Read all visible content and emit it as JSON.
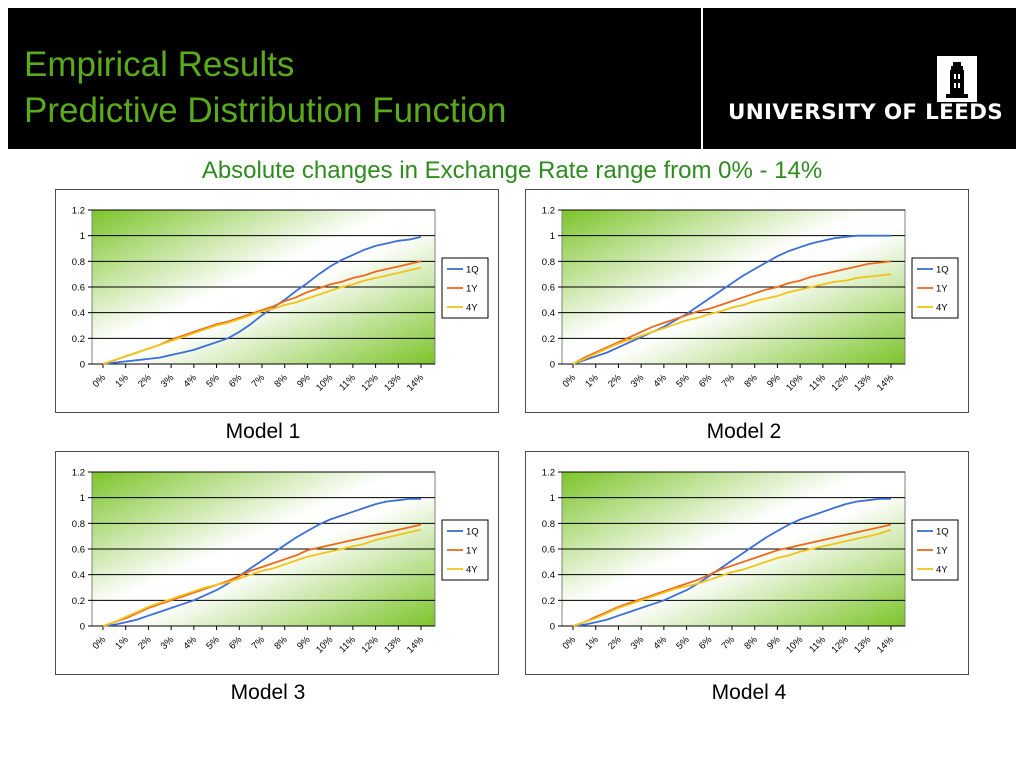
{
  "header": {
    "title_line1": "Empirical Results",
    "title_line2": "Predictive Distribution Function",
    "university": "UNIVERSITY OF LEEDS",
    "logo_icon": "tower-icon"
  },
  "subtitle": "Absolute changes in Exchange Rate range from 0% - 14%",
  "colors": {
    "title": "#5aab1c",
    "subtitle": "#2e8b1e",
    "1Q": "#3a6fd8",
    "1Y": "#ee6a1a",
    "4Y": "#f3c317",
    "plot_green": "#7cc42a"
  },
  "chart_data": [
    {
      "type": "line",
      "caption": "Model 1",
      "categories": [
        "0%",
        "1%",
        "2%",
        "3%",
        "4%",
        "5%",
        "6%",
        "7%",
        "8%",
        "9%",
        "10%",
        "11%",
        "12%",
        "13%",
        "14%"
      ],
      "yticks": [
        "0",
        "0.2",
        "0.4",
        "0.6",
        "0.8",
        "1",
        "1.2"
      ],
      "ylim": [
        0,
        1.2
      ],
      "legend": "right",
      "grid": true,
      "series": [
        {
          "name": "1Q",
          "color": "#3a6fd8",
          "x": [
            0,
            0.5,
            1,
            1.5,
            2,
            2.5,
            3,
            3.5,
            4,
            4.5,
            5,
            5.5,
            6,
            6.5,
            7,
            7.5,
            8,
            8.5,
            9,
            9.5,
            10,
            10.5,
            11,
            11.5,
            12,
            12.5,
            13,
            13.5,
            14
          ],
          "values": [
            0,
            0.01,
            0.02,
            0.03,
            0.04,
            0.05,
            0.07,
            0.09,
            0.11,
            0.14,
            0.17,
            0.2,
            0.25,
            0.31,
            0.38,
            0.44,
            0.5,
            0.57,
            0.63,
            0.7,
            0.76,
            0.81,
            0.85,
            0.89,
            0.92,
            0.94,
            0.96,
            0.97,
            0.99
          ]
        },
        {
          "name": "1Y",
          "color": "#ee6a1a",
          "x": [
            0,
            0.5,
            1,
            1.5,
            2,
            2.5,
            3,
            3.5,
            4,
            4.5,
            5,
            5.5,
            6,
            6.5,
            7,
            7.5,
            8,
            8.5,
            9,
            9.5,
            10,
            10.5,
            11,
            11.5,
            12,
            12.5,
            13,
            13.5,
            14
          ],
          "values": [
            0,
            0.03,
            0.06,
            0.09,
            0.12,
            0.15,
            0.19,
            0.22,
            0.25,
            0.28,
            0.31,
            0.33,
            0.36,
            0.39,
            0.42,
            0.45,
            0.49,
            0.52,
            0.56,
            0.59,
            0.62,
            0.64,
            0.67,
            0.69,
            0.72,
            0.74,
            0.76,
            0.78,
            0.8
          ]
        },
        {
          "name": "4Y",
          "color": "#f3c317",
          "x": [
            0,
            0.5,
            1,
            1.5,
            2,
            2.5,
            3,
            3.5,
            4,
            4.5,
            5,
            5.5,
            6,
            6.5,
            7,
            7.5,
            8,
            8.5,
            9,
            9.5,
            10,
            10.5,
            11,
            11.5,
            12,
            12.5,
            13,
            13.5,
            14
          ],
          "values": [
            0,
            0.03,
            0.06,
            0.09,
            0.12,
            0.15,
            0.18,
            0.21,
            0.24,
            0.27,
            0.3,
            0.32,
            0.35,
            0.38,
            0.41,
            0.43,
            0.46,
            0.48,
            0.51,
            0.54,
            0.57,
            0.6,
            0.62,
            0.65,
            0.67,
            0.69,
            0.71,
            0.73,
            0.75
          ]
        }
      ]
    },
    {
      "type": "line",
      "caption": "Model 2",
      "categories": [
        "0%",
        "1%",
        "2%",
        "3%",
        "4%",
        "5%",
        "6%",
        "7%",
        "8%",
        "9%",
        "10%",
        "11%",
        "12%",
        "13%",
        "14%"
      ],
      "yticks": [
        "0",
        "0.2",
        "0.4",
        "0.6",
        "0.8",
        "1",
        "1.2"
      ],
      "ylim": [
        0,
        1.2
      ],
      "legend": "right",
      "grid": true,
      "series": [
        {
          "name": "1Q",
          "color": "#3a6fd8",
          "x": [
            0,
            0.5,
            1,
            1.5,
            2,
            2.5,
            3,
            3.5,
            4,
            4.5,
            5,
            5.5,
            6,
            6.5,
            7,
            7.5,
            8,
            8.5,
            9,
            9.5,
            10,
            10.5,
            11,
            11.5,
            12,
            12.5,
            13,
            13.5,
            14
          ],
          "values": [
            0,
            0.03,
            0.06,
            0.09,
            0.13,
            0.17,
            0.21,
            0.25,
            0.29,
            0.34,
            0.39,
            0.45,
            0.51,
            0.57,
            0.63,
            0.69,
            0.74,
            0.79,
            0.84,
            0.88,
            0.91,
            0.94,
            0.96,
            0.98,
            0.99,
            1.0,
            1.0,
            1.0,
            1.0
          ]
        },
        {
          "name": "1Y",
          "color": "#ee6a1a",
          "x": [
            0,
            0.5,
            1,
            1.5,
            2,
            2.5,
            3,
            3.5,
            4,
            4.5,
            5,
            5.5,
            6,
            6.5,
            7,
            7.5,
            8,
            8.5,
            9,
            9.5,
            10,
            10.5,
            11,
            11.5,
            12,
            12.5,
            13,
            13.5,
            14
          ],
          "values": [
            0,
            0.05,
            0.09,
            0.13,
            0.17,
            0.21,
            0.25,
            0.29,
            0.32,
            0.35,
            0.38,
            0.41,
            0.43,
            0.46,
            0.49,
            0.52,
            0.55,
            0.58,
            0.6,
            0.63,
            0.65,
            0.68,
            0.7,
            0.72,
            0.74,
            0.76,
            0.78,
            0.79,
            0.8
          ]
        },
        {
          "name": "4Y",
          "color": "#f3c317",
          "x": [
            0,
            0.5,
            1,
            1.5,
            2,
            2.5,
            3,
            3.5,
            4,
            4.5,
            5,
            5.5,
            6,
            6.5,
            7,
            7.5,
            8,
            8.5,
            9,
            9.5,
            10,
            10.5,
            11,
            11.5,
            12,
            12.5,
            13,
            13.5,
            14
          ],
          "values": [
            0,
            0.04,
            0.08,
            0.12,
            0.16,
            0.19,
            0.22,
            0.25,
            0.28,
            0.31,
            0.34,
            0.36,
            0.39,
            0.41,
            0.44,
            0.46,
            0.49,
            0.51,
            0.53,
            0.56,
            0.58,
            0.6,
            0.62,
            0.64,
            0.65,
            0.67,
            0.68,
            0.69,
            0.7
          ]
        }
      ]
    },
    {
      "type": "line",
      "caption": "Model 3",
      "categories": [
        "0%",
        "1%",
        "2%",
        "3%",
        "4%",
        "5%",
        "6%",
        "7%",
        "8%",
        "9%",
        "10%",
        "11%",
        "12%",
        "13%",
        "14%"
      ],
      "yticks": [
        "0",
        "0.2",
        "0.4",
        "0.6",
        "0.8",
        "1",
        "1.2"
      ],
      "ylim": [
        0,
        1.2
      ],
      "legend": "right",
      "grid": true,
      "series": [
        {
          "name": "1Q",
          "color": "#3a6fd8",
          "x": [
            0,
            0.5,
            1,
            1.5,
            2,
            2.5,
            3,
            3.5,
            4,
            4.5,
            5,
            5.5,
            6,
            6.5,
            7,
            7.5,
            8,
            8.5,
            9,
            9.5,
            10,
            10.5,
            11,
            11.5,
            12,
            12.5,
            13,
            13.5,
            14
          ],
          "values": [
            0,
            0.01,
            0.03,
            0.05,
            0.08,
            0.11,
            0.14,
            0.17,
            0.2,
            0.24,
            0.28,
            0.33,
            0.39,
            0.45,
            0.51,
            0.57,
            0.63,
            0.69,
            0.74,
            0.79,
            0.83,
            0.86,
            0.89,
            0.92,
            0.95,
            0.97,
            0.98,
            0.99,
            0.99
          ]
        },
        {
          "name": "1Y",
          "color": "#ee6a1a",
          "x": [
            0,
            0.5,
            1,
            1.5,
            2,
            2.5,
            3,
            3.5,
            4,
            4.5,
            5,
            5.5,
            6,
            6.5,
            7,
            7.5,
            8,
            8.5,
            9,
            9.5,
            10,
            10.5,
            11,
            11.5,
            12,
            12.5,
            13,
            13.5,
            14
          ],
          "values": [
            0,
            0.03,
            0.06,
            0.1,
            0.14,
            0.17,
            0.2,
            0.23,
            0.26,
            0.29,
            0.32,
            0.35,
            0.39,
            0.43,
            0.46,
            0.49,
            0.52,
            0.55,
            0.59,
            0.61,
            0.63,
            0.65,
            0.67,
            0.69,
            0.71,
            0.73,
            0.75,
            0.77,
            0.79
          ]
        },
        {
          "name": "4Y",
          "color": "#f3c317",
          "x": [
            0,
            0.5,
            1,
            1.5,
            2,
            2.5,
            3,
            3.5,
            4,
            4.5,
            5,
            5.5,
            6,
            6.5,
            7,
            7.5,
            8,
            8.5,
            9,
            9.5,
            10,
            10.5,
            11,
            11.5,
            12,
            12.5,
            13,
            13.5,
            14
          ],
          "values": [
            0,
            0.03,
            0.07,
            0.11,
            0.15,
            0.18,
            0.21,
            0.24,
            0.27,
            0.3,
            0.32,
            0.34,
            0.37,
            0.4,
            0.43,
            0.45,
            0.48,
            0.51,
            0.54,
            0.56,
            0.58,
            0.6,
            0.62,
            0.64,
            0.67,
            0.69,
            0.71,
            0.73,
            0.75
          ]
        }
      ]
    },
    {
      "type": "line",
      "caption": "Model 4",
      "categories": [
        "0%",
        "1%",
        "2%",
        "3%",
        "4%",
        "5%",
        "6%",
        "7%",
        "8%",
        "9%",
        "10%",
        "11%",
        "12%",
        "13%",
        "14%"
      ],
      "yticks": [
        "0",
        "0.2",
        "0.4",
        "0.6",
        "0.8",
        "1",
        "1.2"
      ],
      "ylim": [
        0,
        1.2
      ],
      "legend": "right",
      "grid": true,
      "series": [
        {
          "name": "1Q",
          "color": "#3a6fd8",
          "x": [
            0,
            0.5,
            1,
            1.5,
            2,
            2.5,
            3,
            3.5,
            4,
            4.5,
            5,
            5.5,
            6,
            6.5,
            7,
            7.5,
            8,
            8.5,
            9,
            9.5,
            10,
            10.5,
            11,
            11.5,
            12,
            12.5,
            13,
            13.5,
            14
          ],
          "values": [
            0,
            0.01,
            0.03,
            0.05,
            0.08,
            0.11,
            0.14,
            0.17,
            0.2,
            0.24,
            0.28,
            0.33,
            0.39,
            0.45,
            0.51,
            0.57,
            0.63,
            0.69,
            0.74,
            0.79,
            0.83,
            0.86,
            0.89,
            0.92,
            0.95,
            0.97,
            0.98,
            0.99,
            0.99
          ]
        },
        {
          "name": "1Y",
          "color": "#ee6a1a",
          "x": [
            0,
            0.5,
            1,
            1.5,
            2,
            2.5,
            3,
            3.5,
            4,
            4.5,
            5,
            5.5,
            6,
            6.5,
            7,
            7.5,
            8,
            8.5,
            9,
            9.5,
            10,
            10.5,
            11,
            11.5,
            12,
            12.5,
            13,
            13.5,
            14
          ],
          "values": [
            0,
            0.03,
            0.07,
            0.11,
            0.15,
            0.18,
            0.21,
            0.24,
            0.27,
            0.3,
            0.33,
            0.36,
            0.4,
            0.44,
            0.47,
            0.5,
            0.53,
            0.56,
            0.59,
            0.61,
            0.63,
            0.65,
            0.67,
            0.69,
            0.71,
            0.73,
            0.75,
            0.77,
            0.79
          ]
        },
        {
          "name": "4Y",
          "color": "#f3c317",
          "x": [
            0,
            0.5,
            1,
            1.5,
            2,
            2.5,
            3,
            3.5,
            4,
            4.5,
            5,
            5.5,
            6,
            6.5,
            7,
            7.5,
            8,
            8.5,
            9,
            9.5,
            10,
            10.5,
            11,
            11.5,
            12,
            12.5,
            13,
            13.5,
            14
          ],
          "values": [
            0,
            0.03,
            0.06,
            0.1,
            0.14,
            0.17,
            0.2,
            0.23,
            0.26,
            0.29,
            0.31,
            0.33,
            0.36,
            0.39,
            0.42,
            0.44,
            0.47,
            0.5,
            0.53,
            0.55,
            0.58,
            0.6,
            0.62,
            0.64,
            0.66,
            0.68,
            0.7,
            0.72,
            0.75
          ]
        }
      ]
    }
  ]
}
